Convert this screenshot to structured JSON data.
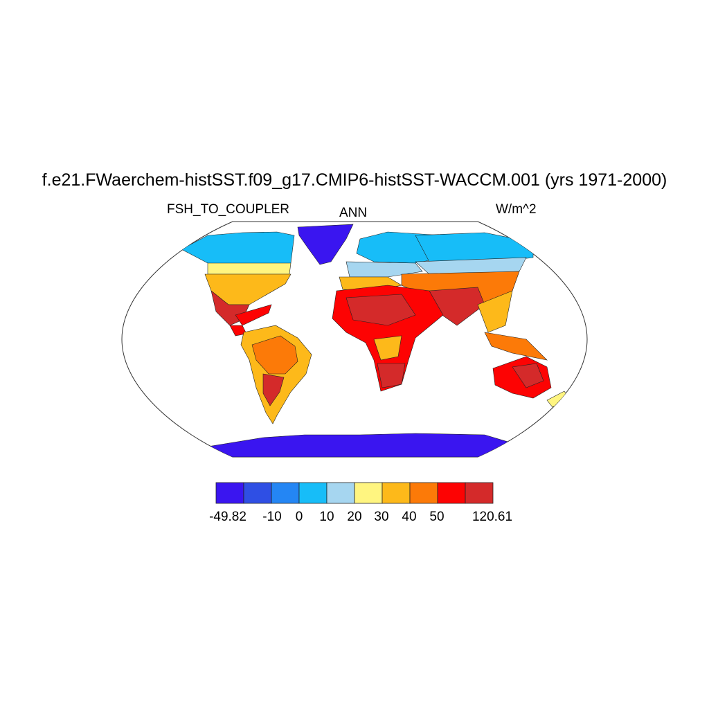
{
  "title": "f.e21.FWaerchem-histSST.f09_g17.CMIP6-histSST-WACCM.001 (yrs 1971-2000)",
  "left_label": "FSH_TO_COUPLER",
  "center_label": "ANN",
  "right_label": "W/m^2",
  "colorbar": {
    "colors": [
      "#3a15f0",
      "#2f4fe4",
      "#2486f4",
      "#17bdf8",
      "#a6d6f0",
      "#fff580",
      "#fdb91a",
      "#fc7a08",
      "#fd0303",
      "#d42a2a"
    ],
    "labels": [
      "-49.82",
      "-10",
      "0",
      "10",
      "20",
      "30",
      "40",
      "50",
      "120.61"
    ]
  }
}
